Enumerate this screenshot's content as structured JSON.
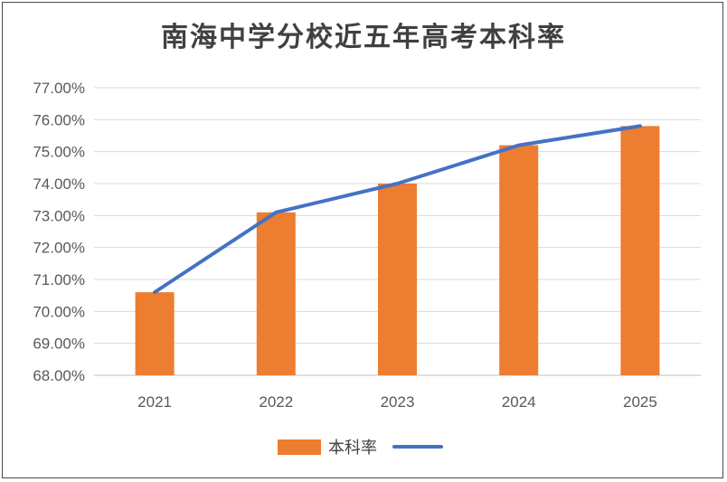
{
  "chart_data": {
    "type": "bar",
    "title": "南海中学分校近五年高考本科率",
    "categories": [
      "2021",
      "2022",
      "2023",
      "2024",
      "2025"
    ],
    "series": [
      {
        "name": "本科率",
        "type": "bar",
        "color": "#ED7D31",
        "values": [
          70.6,
          73.1,
          74.0,
          75.2,
          75.8
        ]
      },
      {
        "type": "line",
        "color": "#4472C4",
        "values": [
          70.6,
          73.1,
          74.0,
          75.2,
          75.8
        ]
      }
    ],
    "ylim": [
      68,
      77
    ],
    "yticks": [
      "68.00%",
      "69.00%",
      "70.00%",
      "71.00%",
      "72.00%",
      "73.00%",
      "74.00%",
      "75.00%",
      "76.00%",
      "77.00%"
    ],
    "grid": true,
    "legend": "bottom"
  }
}
